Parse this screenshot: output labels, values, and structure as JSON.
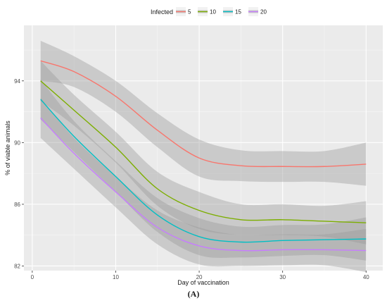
{
  "chart_data": {
    "type": "line",
    "xlabel": "Day of vaccination",
    "ylabel": "% of viable animals",
    "xlim": [
      -1,
      42
    ],
    "ylim": [
      81.7,
      97.6
    ],
    "x_ticks": [
      0,
      10,
      20,
      30,
      40
    ],
    "y_ticks": [
      82,
      86,
      90,
      94
    ],
    "grid": true,
    "legend": {
      "title": "Infected",
      "position": "top"
    },
    "series": [
      {
        "name": "5",
        "color": "#f8766d",
        "points": [
          [
            1,
            95.3
          ],
          [
            5,
            94.6
          ],
          [
            10,
            93.0
          ],
          [
            15,
            90.8
          ],
          [
            20,
            89.0
          ],
          [
            25,
            88.5
          ],
          [
            30,
            88.45
          ],
          [
            35,
            88.45
          ],
          [
            40,
            88.6
          ]
        ],
        "band_half_width": [
          1.3,
          1.0,
          1.0,
          1.1,
          1.2,
          1.0,
          1.0,
          1.0,
          1.4
        ]
      },
      {
        "name": "10",
        "color": "#7cae00",
        "points": [
          [
            1,
            94.0
          ],
          [
            5,
            92.1
          ],
          [
            10,
            89.7
          ],
          [
            15,
            87.0
          ],
          [
            20,
            85.6
          ],
          [
            25,
            85.0
          ],
          [
            30,
            85.0
          ],
          [
            35,
            84.9
          ],
          [
            40,
            84.8
          ]
        ],
        "band_half_width": [
          1.3,
          1.0,
          1.0,
          1.1,
          1.2,
          1.0,
          1.0,
          1.0,
          1.4
        ]
      },
      {
        "name": "15",
        "color": "#00bfc4",
        "points": [
          [
            1,
            92.8
          ],
          [
            5,
            90.4
          ],
          [
            10,
            87.8
          ],
          [
            15,
            85.3
          ],
          [
            20,
            83.9
          ],
          [
            25,
            83.55
          ],
          [
            30,
            83.65
          ],
          [
            35,
            83.7
          ],
          [
            40,
            83.75
          ]
        ],
        "band_half_width": [
          1.3,
          1.0,
          1.0,
          1.1,
          1.2,
          1.0,
          1.0,
          1.0,
          1.4
        ]
      },
      {
        "name": "20",
        "color": "#c77cff",
        "points": [
          [
            1,
            91.6
          ],
          [
            5,
            89.3
          ],
          [
            10,
            86.8
          ],
          [
            15,
            84.5
          ],
          [
            20,
            83.3
          ],
          [
            25,
            83.0
          ],
          [
            30,
            83.05
          ],
          [
            35,
            83.05
          ],
          [
            40,
            83.0
          ]
        ],
        "band_half_width": [
          1.3,
          1.0,
          1.0,
          1.1,
          1.2,
          1.0,
          1.0,
          1.0,
          1.4
        ]
      }
    ]
  },
  "caption": "(A)"
}
